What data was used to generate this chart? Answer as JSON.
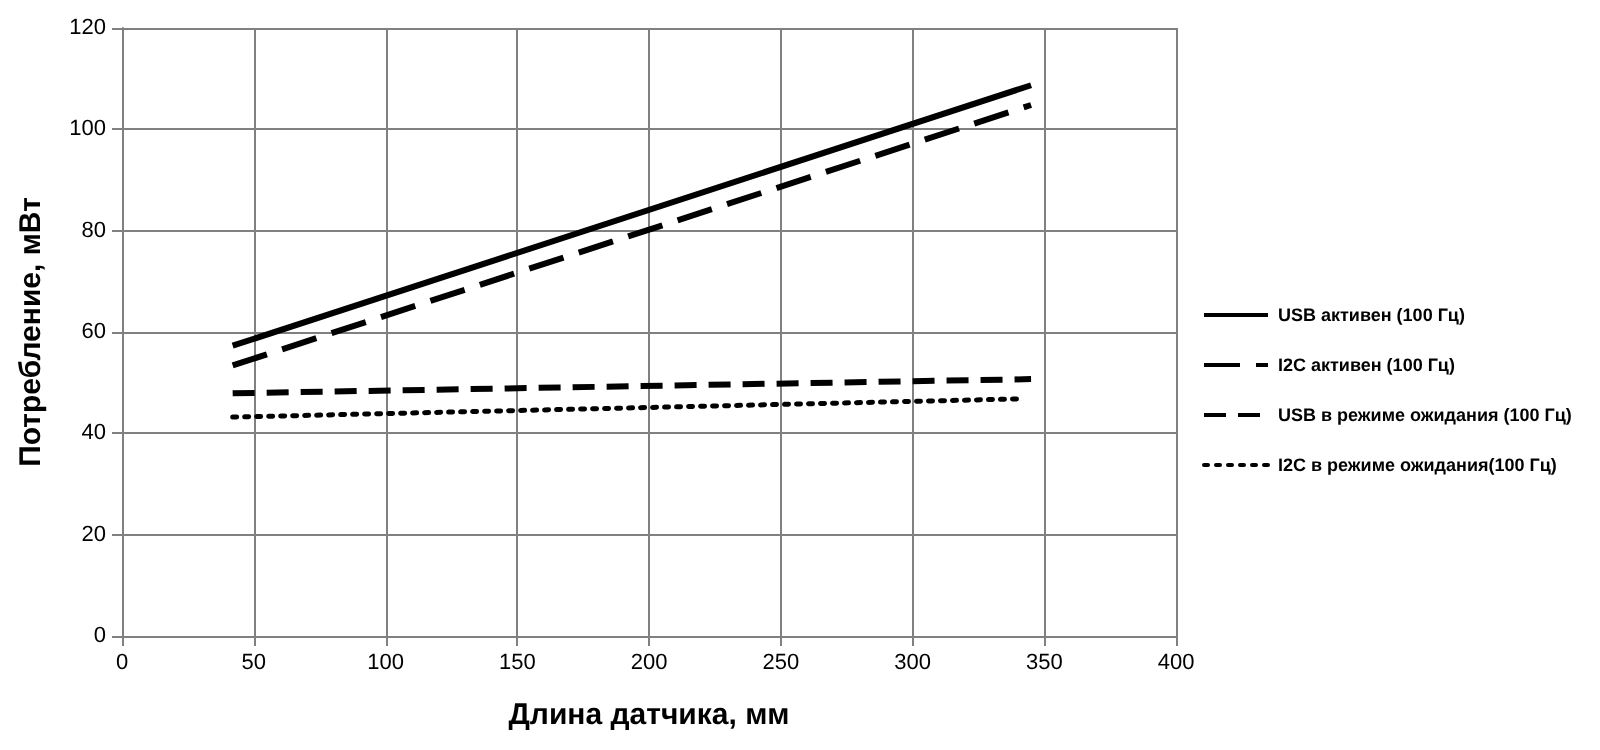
{
  "chart_data": {
    "type": "line",
    "xlabel": "Длина датчика, мм",
    "ylabel": "Потребление, мВт",
    "xlim": [
      0,
      400
    ],
    "xticks": [
      0,
      50,
      100,
      150,
      200,
      250,
      300,
      350,
      400
    ],
    "ylim": [
      0,
      120
    ],
    "yticks": [
      0,
      20,
      40,
      60,
      80,
      100,
      120
    ],
    "grid": true,
    "legend": "right",
    "marker": "none",
    "series": [
      {
        "name": "USB активен (100 Гц)",
        "color": "#000000",
        "line_style": "solid",
        "x": [
          42,
          345
        ],
        "values": [
          57.3,
          108.7
        ]
      },
      {
        "name": "I2C активен (100 Гц)",
        "color": "#000000",
        "line_style": "longdash",
        "x": [
          42,
          345
        ],
        "values": [
          53.4,
          104.8
        ]
      },
      {
        "name": "USB в режиме ожидания (100 Гц)",
        "color": "#000000",
        "line_style": "dashed",
        "x": [
          42,
          345
        ],
        "values": [
          47.9,
          50.7
        ]
      },
      {
        "name": "I2C в режиме ожидания(100 Гц)",
        "color": "#000000",
        "line_style": "dotted",
        "x": [
          42,
          341
        ],
        "values": [
          43.2,
          46.8
        ]
      }
    ]
  }
}
